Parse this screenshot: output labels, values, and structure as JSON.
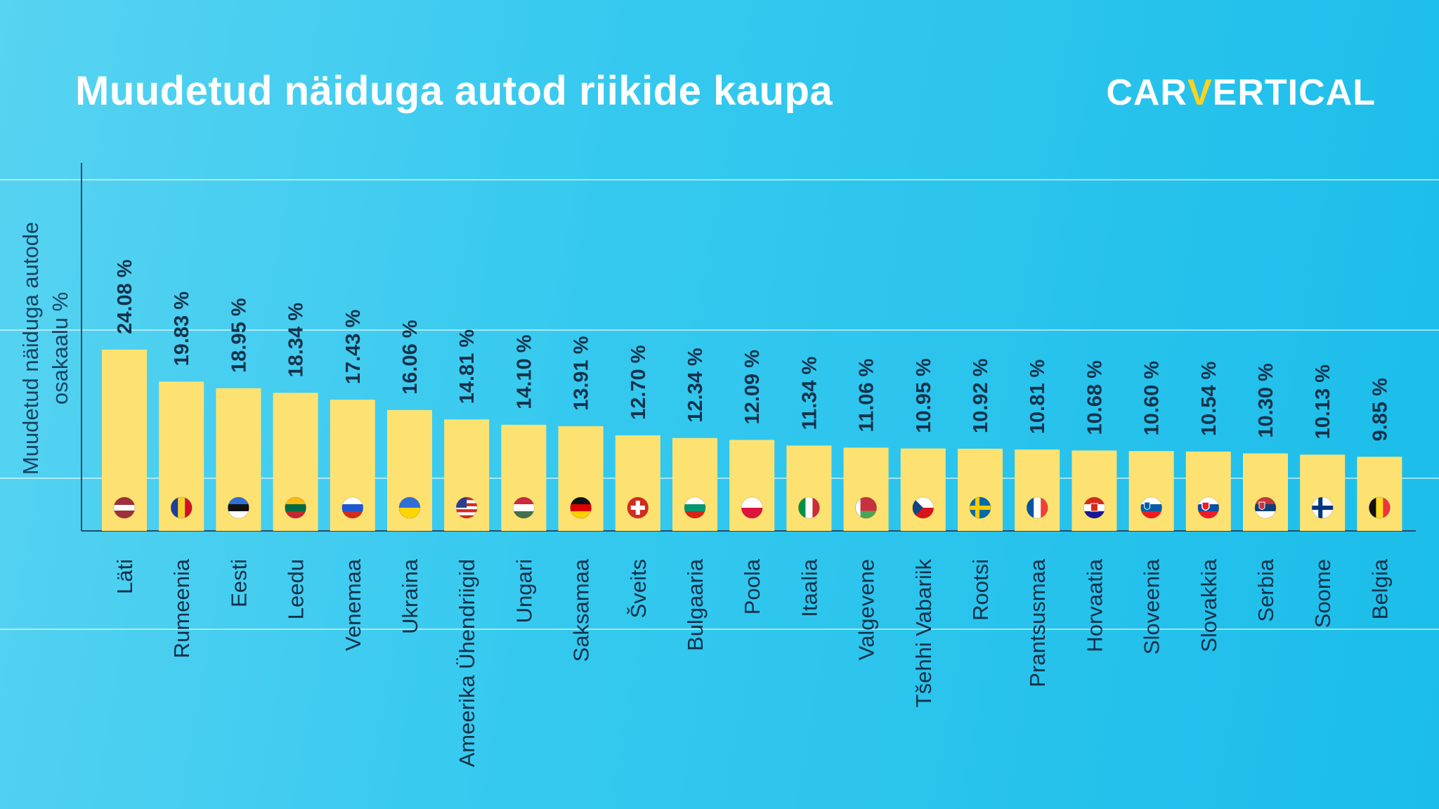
{
  "title": "Muudetud näiduga autod riikide kaupa",
  "logo": {
    "part1": "CAR",
    "check": "V",
    "part2": "ERTICAL"
  },
  "colors": {
    "bar": "#fde272",
    "axis": "#1f4e6b",
    "grid": "rgba(255,255,255,0.55)"
  },
  "chart_data": {
    "type": "bar",
    "title": "Muudetud näiduga autod riikide kaupa",
    "ylabel_lines": [
      "Muudetud näiduga autode",
      "osakaalu %"
    ],
    "xlabel": "",
    "ylim": [
      0,
      30
    ],
    "value_suffix": " %",
    "categories": [
      "Läti",
      "Rumeenia",
      "Eesti",
      "Leedu",
      "Venemaa",
      "Ukraina",
      "Ameerika Ühendriigid",
      "Ungari",
      "Saksamaa",
      "Šveits",
      "Bulgaaria",
      "Poola",
      "Itaalia",
      "Valgevene",
      "Tšehhi Vabariik",
      "Rootsi",
      "Prantsusmaa",
      "Horvaatia",
      "Sloveenia",
      "Slovakkia",
      "Serbia",
      "Soome",
      "Belgia"
    ],
    "values": [
      24.08,
      19.83,
      18.95,
      18.34,
      17.43,
      16.06,
      14.81,
      14.1,
      13.91,
      12.7,
      12.34,
      12.09,
      11.34,
      11.06,
      10.95,
      10.92,
      10.81,
      10.68,
      10.6,
      10.54,
      10.3,
      10.13,
      9.85
    ],
    "value_labels": [
      "24.08 %",
      "19.83 %",
      "18.95 %",
      "18.34 %",
      "17.43 %",
      "16.06 %",
      "14.81 %",
      "14.10 %",
      "13.91 %",
      "12.70 %",
      "12.34 %",
      "12.09 %",
      "11.34 %",
      "11.06 %",
      "10.95 %",
      "10.92 %",
      "10.81 %",
      "10.68 %",
      "10.60 %",
      "10.54 %",
      "10.30 %",
      "10.13 %",
      "9.85 %"
    ],
    "flags": [
      "flag-latvia-icon",
      "flag-romania-icon",
      "flag-estonia-icon",
      "flag-lithuania-icon",
      "flag-russia-icon",
      "flag-ukraine-icon",
      "flag-usa-icon",
      "flag-hungary-icon",
      "flag-germany-icon",
      "flag-switzerland-icon",
      "flag-bulgaria-icon",
      "flag-poland-icon",
      "flag-italy-icon",
      "flag-belarus-icon",
      "flag-czechia-icon",
      "flag-sweden-icon",
      "flag-france-icon",
      "flag-croatia-icon",
      "flag-slovenia-icon",
      "flag-slovakia-icon",
      "flag-serbia-icon",
      "flag-finland-icon",
      "flag-belgium-icon"
    ]
  }
}
